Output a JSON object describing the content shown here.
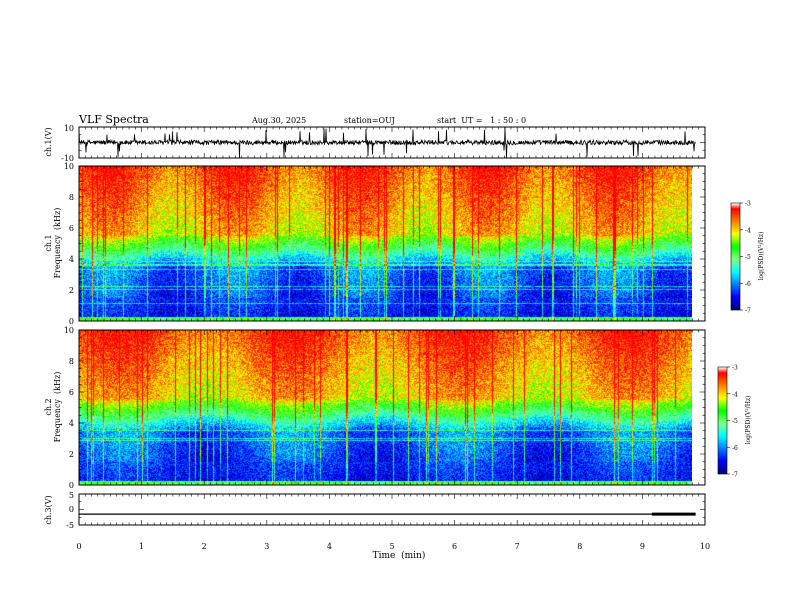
{
  "header": {
    "title": "VLF Spectra",
    "date": "Aug.30, 2025",
    "station": "station=OUJ",
    "start": "start  UT =   1 : 50 : 0"
  },
  "chart_data": [
    {
      "id": "ch1-waveform",
      "type": "line",
      "ylabel": "ch.1(V)",
      "ylim": [
        -10,
        10
      ],
      "y_ticks": [
        "10",
        "-10"
      ],
      "xlim": [
        0,
        10
      ],
      "trace_color": "#000000"
    },
    {
      "id": "ch1-spectrogram",
      "type": "heatmap",
      "ylabel_line1": "ch.1",
      "ylabel_line2": "Frequency  (kHz)",
      "ylim": [
        0,
        10
      ],
      "y_ticks": [
        "0",
        "2",
        "4",
        "6",
        "8",
        "10"
      ],
      "xlim": [
        0,
        10
      ],
      "colorbar": {
        "label": "log(PSD)(V²/Hz)",
        "range": [
          -7,
          -3
        ],
        "ticks": [
          "-3",
          "-4",
          "-5",
          "-6",
          "-7"
        ]
      }
    },
    {
      "id": "ch2-spectrogram",
      "type": "heatmap",
      "ylabel_line1": "ch.2",
      "ylabel_line2": "Frequency  (kHz)",
      "ylim": [
        0,
        10
      ],
      "y_ticks": [
        "0",
        "2",
        "4",
        "6",
        "8",
        "10"
      ],
      "xlim": [
        0,
        10
      ],
      "colorbar": {
        "label": "log(PSD)(V²/Hz)",
        "range": [
          -7,
          -3
        ],
        "ticks": [
          "-3",
          "-4",
          "-5",
          "-6",
          "-7"
        ]
      }
    },
    {
      "id": "ch3-waveform",
      "type": "line",
      "ylabel": "ch.3(V)",
      "ylim": [
        -5,
        5
      ],
      "y_ticks": [
        "5",
        "0",
        "-5"
      ],
      "xlim": [
        0,
        10
      ],
      "baseline_value": -1.5,
      "segment": {
        "x": [
          9.15,
          9.85
        ],
        "y": -1.5
      }
    }
  ],
  "x_axis": {
    "label": "Time  (min)",
    "ticks": [
      "0",
      "1",
      "2",
      "3",
      "4",
      "5",
      "6",
      "7",
      "8",
      "9",
      "10"
    ],
    "range": [
      0,
      10
    ],
    "data_end": 9.85
  },
  "colormap": [
    "#00007f",
    "#0000ff",
    "#0080ff",
    "#00ffff",
    "#80ff80",
    "#00ff00",
    "#ffff00",
    "#ff8000",
    "#ff0000",
    "#ffffff"
  ]
}
